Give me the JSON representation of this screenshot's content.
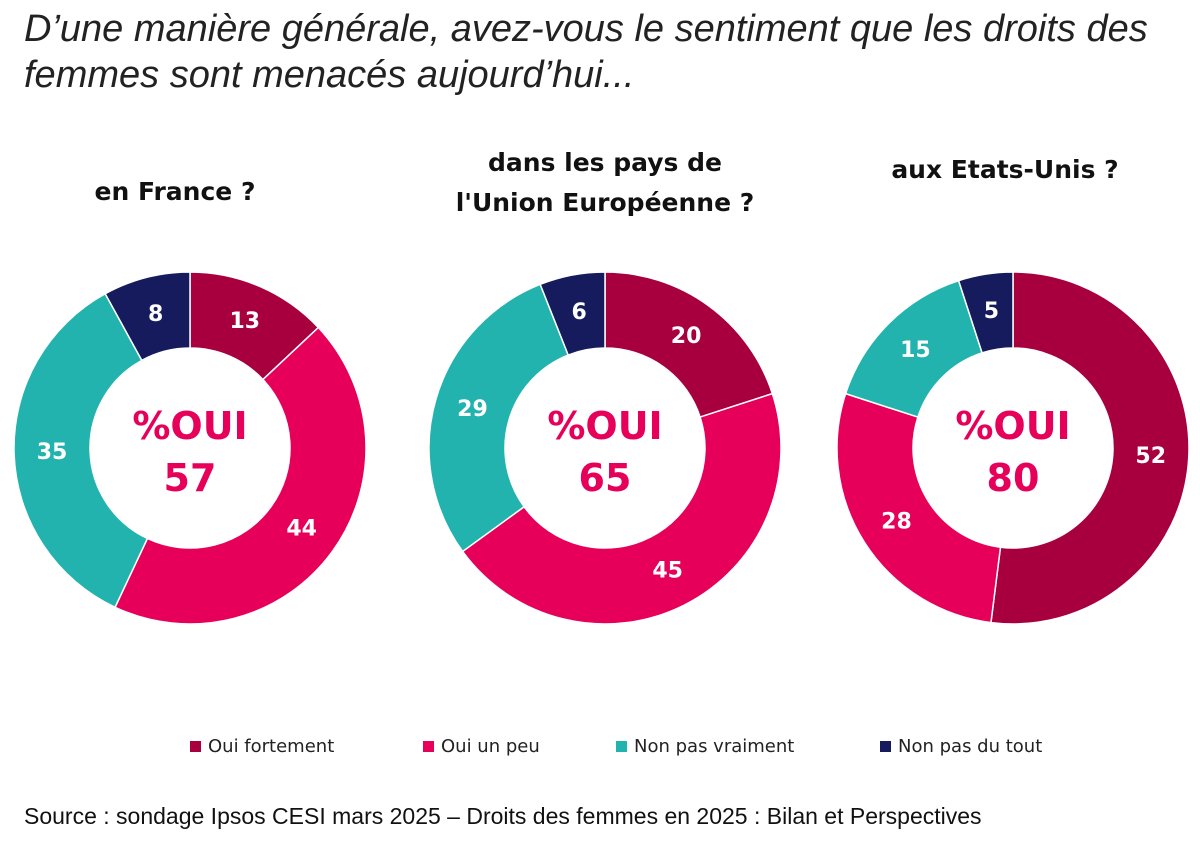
{
  "title": "D’une manière générale, avez-vous le sentiment que les droits des femmes sont menacés aujourd’hui...",
  "source": "Source : sondage Ipsos CESI mars 2025 – Droits des femmes en 2025 : Bilan et Perspectives",
  "chart_data": [
    {
      "type": "pie",
      "title": "en France ?",
      "center_label": "%OUI",
      "center_value": "57",
      "categories": [
        "Oui fortement",
        "Oui un peu",
        "Non pas vraiment",
        "Non pas du tout"
      ],
      "values": [
        13,
        44,
        35,
        8
      ]
    },
    {
      "type": "pie",
      "title": "dans les pays de\nl'Union Européenne ?",
      "center_label": "%OUI",
      "center_value": "65",
      "categories": [
        "Oui fortement",
        "Oui un peu",
        "Non pas vraiment",
        "Non pas du tout"
      ],
      "values": [
        20,
        45,
        29,
        6
      ]
    },
    {
      "type": "pie",
      "title": "aux Etats-Unis ?",
      "center_label": "%OUI",
      "center_value": "80",
      "categories": [
        "Oui fortement",
        "Oui un peu",
        "Non pas vraiment",
        "Non pas du tout"
      ],
      "values": [
        52,
        28,
        15,
        5
      ]
    }
  ],
  "legend": [
    {
      "label": "Oui fortement",
      "color": "#A8003F"
    },
    {
      "label": "Oui un peu",
      "color": "#E6005A"
    },
    {
      "label": "Non pas vraiment",
      "color": "#22B3AE"
    },
    {
      "label": "Non pas du tout",
      "color": "#151B5C"
    }
  ],
  "colors": {
    "oui_fortement": "#A8003F",
    "oui_un_peu": "#E6005A",
    "non_pas_vraiment": "#22B3AE",
    "non_pas_du_tout": "#151B5C",
    "center_text": "#E6005A"
  }
}
